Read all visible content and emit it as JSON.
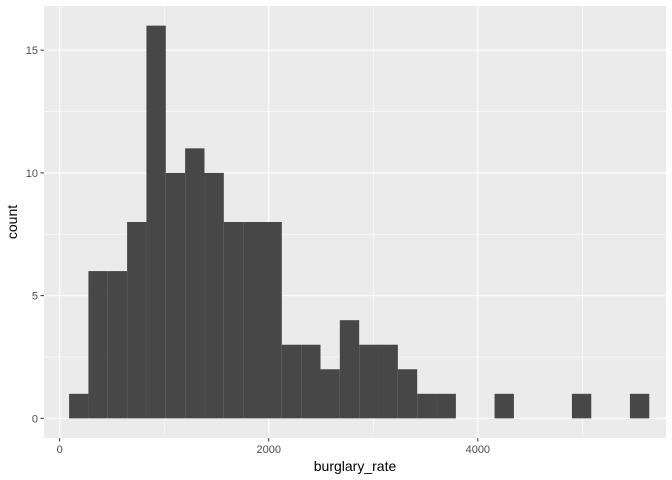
{
  "chart_data": {
    "type": "bar",
    "subtype": "histogram",
    "title": "",
    "xlabel": "burglary_rate",
    "ylabel": "count",
    "xlim": [
      -150,
      5800
    ],
    "ylim": [
      -0.8,
      16.8
    ],
    "x_ticks": [
      0,
      2000,
      4000
    ],
    "x_tick_labels": [
      "0",
      "2000",
      "4000"
    ],
    "y_ticks": [
      0,
      5,
      10,
      15
    ],
    "y_tick_labels": [
      "0",
      "5",
      "10",
      "15"
    ],
    "grid": true,
    "legend": "none",
    "colors": {
      "panel": "#ebebeb",
      "grid": "#ffffff",
      "bar": "#474747",
      "tick_label": "#4d4d4d"
    },
    "bins": [
      {
        "x0": 90,
        "x1": 275,
        "count": 1
      },
      {
        "x0": 275,
        "x1": 460,
        "count": 6
      },
      {
        "x0": 460,
        "x1": 645,
        "count": 6
      },
      {
        "x0": 645,
        "x1": 830,
        "count": 8
      },
      {
        "x0": 830,
        "x1": 1015,
        "count": 16
      },
      {
        "x0": 1015,
        "x1": 1200,
        "count": 10
      },
      {
        "x0": 1200,
        "x1": 1385,
        "count": 11
      },
      {
        "x0": 1385,
        "x1": 1570,
        "count": 10
      },
      {
        "x0": 1570,
        "x1": 1755,
        "count": 8
      },
      {
        "x0": 1755,
        "x1": 1940,
        "count": 8
      },
      {
        "x0": 1940,
        "x1": 2125,
        "count": 8
      },
      {
        "x0": 2125,
        "x1": 2310,
        "count": 3
      },
      {
        "x0": 2310,
        "x1": 2495,
        "count": 3
      },
      {
        "x0": 2495,
        "x1": 2680,
        "count": 2
      },
      {
        "x0": 2680,
        "x1": 2865,
        "count": 4
      },
      {
        "x0": 2865,
        "x1": 3050,
        "count": 3
      },
      {
        "x0": 3050,
        "x1": 3235,
        "count": 3
      },
      {
        "x0": 3235,
        "x1": 3420,
        "count": 2
      },
      {
        "x0": 3420,
        "x1": 3605,
        "count": 1
      },
      {
        "x0": 3605,
        "x1": 3790,
        "count": 1
      },
      {
        "x0": 3790,
        "x1": 3975,
        "count": 0
      },
      {
        "x0": 3975,
        "x1": 4160,
        "count": 0
      },
      {
        "x0": 4160,
        "x1": 4345,
        "count": 1
      },
      {
        "x0": 4345,
        "x1": 4530,
        "count": 0
      },
      {
        "x0": 4530,
        "x1": 4715,
        "count": 0
      },
      {
        "x0": 4715,
        "x1": 4900,
        "count": 0
      },
      {
        "x0": 4900,
        "x1": 5085,
        "count": 1
      },
      {
        "x0": 5085,
        "x1": 5270,
        "count": 0
      },
      {
        "x0": 5270,
        "x1": 5455,
        "count": 0
      },
      {
        "x0": 5455,
        "x1": 5640,
        "count": 1
      }
    ]
  }
}
